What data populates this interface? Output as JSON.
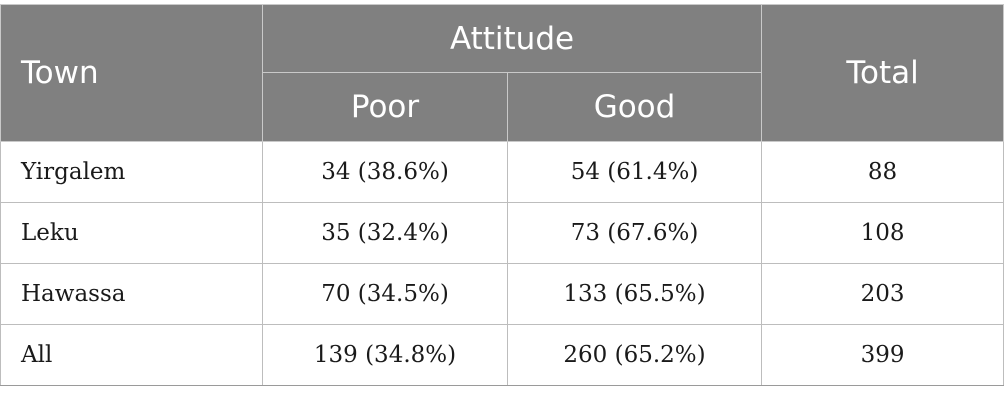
{
  "table": {
    "headers": {
      "town": "Town",
      "attitude": "Attitude",
      "poor": "Poor",
      "good": "Good",
      "total": "Total"
    },
    "rows": [
      {
        "town": "Yirgalem",
        "poor": "34 (38.6%)",
        "good": "54 (61.4%)",
        "total": "88"
      },
      {
        "town": "Leku",
        "poor": "35 (32.4%)",
        "good": "73 (67.6%)",
        "total": "108"
      },
      {
        "town": "Hawassa",
        "poor": "70 (34.5%)",
        "good": "133 (65.5%)",
        "total": "203"
      },
      {
        "town": "All",
        "poor": "139 (34.8%)",
        "good": "260 (65.2%)",
        "total": "399"
      }
    ]
  }
}
